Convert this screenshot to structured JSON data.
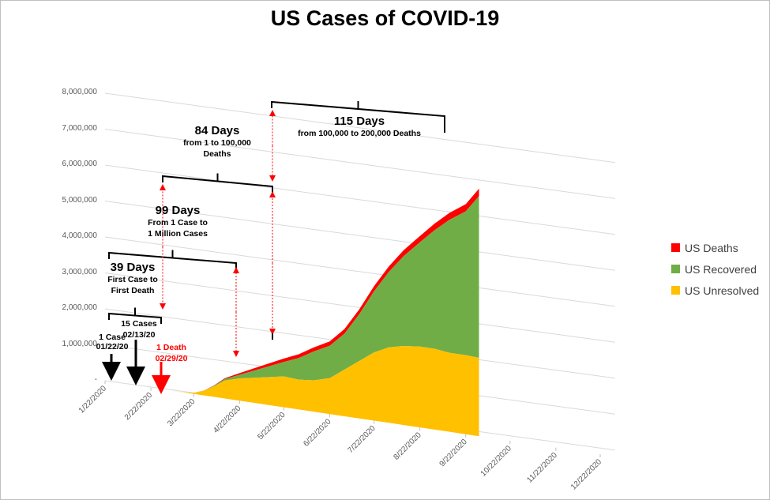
{
  "chart_data": {
    "type": "area",
    "title": "US Cases of COVID-19",
    "ylim": [
      0,
      8000000
    ],
    "y_ticks": [
      "-",
      "1,000,000",
      "2,000,000",
      "3,000,000",
      "4,000,000",
      "5,000,000",
      "6,000,000",
      "7,000,000",
      "8,000,000"
    ],
    "x_ticks": [
      "1/22/2020",
      "2/22/2020",
      "3/22/2020",
      "4/22/2020",
      "5/22/2020",
      "6/22/2020",
      "7/22/2020",
      "8/22/2020",
      "9/22/2020",
      "10/22/2020",
      "11/22/2020",
      "12/22/2020"
    ],
    "x": [
      "1/22/2020",
      "2/22/2020",
      "3/5/2020",
      "3/15/2020",
      "3/22/2020",
      "3/29/2020",
      "4/5/2020",
      "4/12/2020",
      "4/22/2020",
      "5/2/2020",
      "5/12/2020",
      "5/22/2020",
      "6/1/2020",
      "6/11/2020",
      "6/22/2020",
      "7/2/2020",
      "7/12/2020",
      "7/22/2020",
      "8/1/2020",
      "8/11/2020",
      "8/22/2020",
      "9/1/2020",
      "9/11/2020",
      "9/22/2020",
      "10/1/2020"
    ],
    "series": [
      {
        "name": "US Unresolved",
        "values": [
          0,
          60,
          1000,
          4000,
          30000,
          130000,
          300000,
          500000,
          620000,
          700000,
          780000,
          860000,
          830000,
          870000,
          1000000,
          1300000,
          1600000,
          1900000,
          2100000,
          2200000,
          2250000,
          2250000,
          2200000,
          2200000,
          2180000
        ]
      },
      {
        "name": "US Recovered",
        "values": [
          0,
          10,
          10,
          100,
          200,
          5000,
          20000,
          40000,
          100000,
          200000,
          300000,
          400000,
          600000,
          800000,
          900000,
          1000000,
          1300000,
          1700000,
          2100000,
          2500000,
          2900000,
          3300000,
          3700000,
          4000000,
          4500000
        ]
      },
      {
        "name": "US Deaths",
        "values": [
          0,
          0,
          10,
          100,
          400,
          2500,
          9000,
          22000,
          46000,
          65000,
          82000,
          96000,
          106000,
          114000,
          120000,
          128000,
          135000,
          143000,
          152000,
          164000,
          175000,
          185000,
          193000,
          200000,
          208000
        ]
      }
    ],
    "colors": {
      "deaths": "#ff0000",
      "recovered": "#70ad47",
      "unresolved": "#ffc000"
    },
    "legend_position": "right",
    "grid": true,
    "annotations": {
      "a39": {
        "title": "39 Days",
        "line1": "First Case to",
        "line2": "First Death"
      },
      "a99": {
        "title": "99 Days",
        "line1": "From 1 Case to",
        "line2": "1 Million Cases"
      },
      "a84": {
        "title": "84 Days",
        "line1": "from 1 to 100,000",
        "line2": "Deaths"
      },
      "a115": {
        "title": "115 Days",
        "line1": "from 100,000 to 200,000 Deaths"
      },
      "case1": {
        "line1": "1 Case",
        "line2": "01/22/20"
      },
      "case15": {
        "line1": "15 Cases",
        "line2": "02/13/20"
      },
      "death1": {
        "line1": "1 Death",
        "line2": "02/29/20"
      }
    }
  }
}
